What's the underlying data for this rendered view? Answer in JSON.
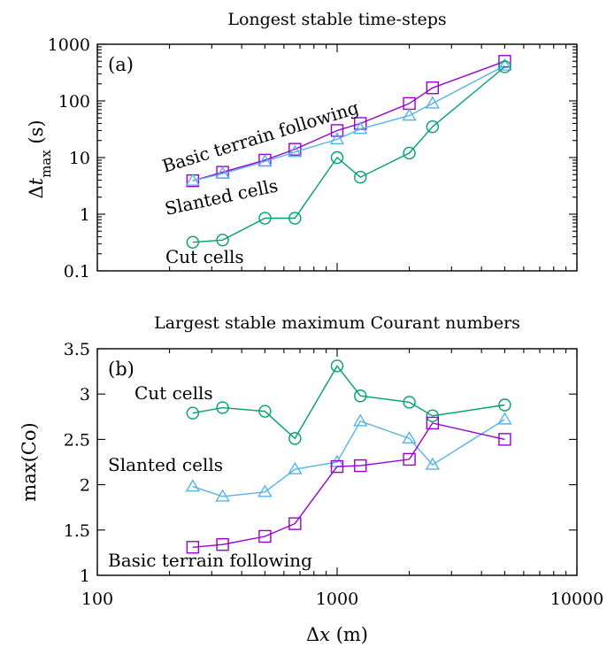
{
  "chart_data": [
    {
      "panel": "(a)",
      "type": "line",
      "title": "Longest stable time-steps",
      "ylabel": "Δt_max (s)",
      "xlabel": "",
      "xscale": "log",
      "yscale": "log",
      "xlim": [
        100,
        10000
      ],
      "ylim": [
        0.1,
        1000
      ],
      "yticks": [
        "0.1",
        "1",
        "10",
        "100",
        "1000"
      ],
      "series": [
        {
          "name": "Basic terrain following",
          "color": "#9400d3",
          "marker": "square",
          "x": [
            250,
            333,
            500,
            667,
            1000,
            1250,
            2000,
            2500,
            5000
          ],
          "y": [
            3.9,
            5.5,
            9,
            14,
            30,
            40,
            90,
            170,
            500
          ]
        },
        {
          "name": "Slanted cells",
          "color": "#56b4e9",
          "marker": "triangle",
          "x": [
            250,
            333,
            500,
            667,
            1000,
            1250,
            2000,
            2500,
            5000
          ],
          "y": [
            3.9,
            5.2,
            8.5,
            12.5,
            21,
            32,
            55,
            90,
            420
          ]
        },
        {
          "name": "Cut cells",
          "color": "#009e73",
          "marker": "circle",
          "x": [
            250,
            333,
            500,
            667,
            1000,
            1250,
            2000,
            2500,
            5000
          ],
          "y": [
            0.32,
            0.35,
            0.85,
            0.85,
            10,
            4.5,
            12,
            35,
            400
          ]
        }
      ]
    },
    {
      "panel": "(b)",
      "type": "line",
      "title": "Largest stable maximum Courant numbers",
      "ylabel": "max(Co)",
      "xlabel": "Δx (m)",
      "xscale": "log",
      "yscale": "linear",
      "xlim": [
        100,
        10000
      ],
      "ylim": [
        1,
        3.5
      ],
      "xticks": [
        "100",
        "1000",
        "10000"
      ],
      "yticks": [
        "1",
        "1.5",
        "2",
        "2.5",
        "3",
        "3.5"
      ],
      "series": [
        {
          "name": "Cut cells",
          "color": "#009e73",
          "marker": "circle",
          "x": [
            250,
            333,
            500,
            667,
            1000,
            1250,
            2000,
            2500,
            5000
          ],
          "y": [
            2.79,
            2.85,
            2.81,
            2.51,
            3.31,
            2.98,
            2.91,
            2.76,
            2.88
          ]
        },
        {
          "name": "Slanted cells",
          "color": "#56b4e9",
          "marker": "triangle",
          "x": [
            250,
            333,
            500,
            667,
            1000,
            1250,
            2000,
            2500,
            5000
          ],
          "y": [
            1.98,
            1.87,
            1.92,
            2.17,
            2.25,
            2.7,
            2.51,
            2.22,
            2.72
          ]
        },
        {
          "name": "Basic terrain following",
          "color": "#9400d3",
          "marker": "square",
          "x": [
            250,
            333,
            500,
            667,
            1000,
            1250,
            2000,
            2500,
            5000
          ],
          "y": [
            1.31,
            1.34,
            1.43,
            1.57,
            2.2,
            2.21,
            2.28,
            2.68,
            2.5
          ]
        }
      ]
    }
  ]
}
